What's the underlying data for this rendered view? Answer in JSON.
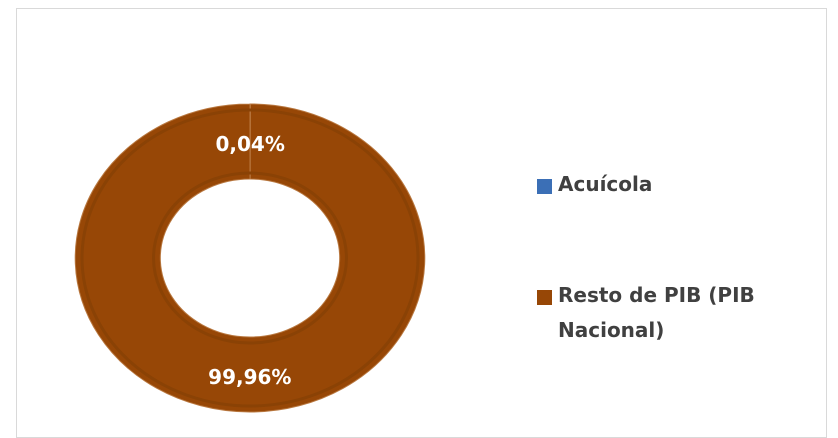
{
  "chart_data": {
    "type": "donut",
    "categories": [
      "Acuícola",
      "Resto de PIB (PIB Nacional)"
    ],
    "values": [
      0.04,
      99.96
    ],
    "value_labels": [
      "0,04%",
      "99,96%"
    ],
    "colors": [
      "#3b6fb6",
      "#974706"
    ],
    "legend": "right"
  }
}
